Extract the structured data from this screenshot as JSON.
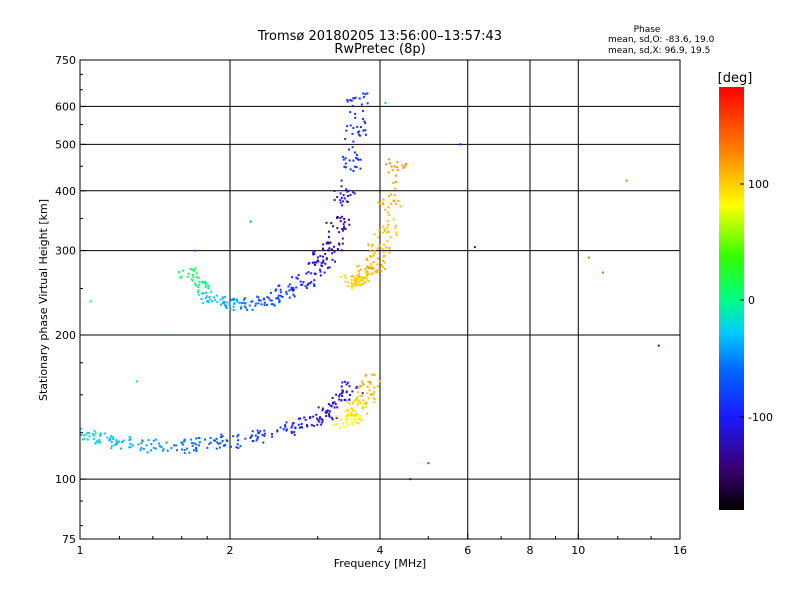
{
  "chart_data": {
    "type": "scatter",
    "title": "Tromsø 20180205 13:56:00–13:57:43",
    "subtitle": "RwPretec (8p)",
    "xlabel": "Frequency [MHz]",
    "ylabel": "Stationary phase Virtual Height [km]",
    "x_scale": "log",
    "y_scale": "log",
    "xlim": [
      1,
      16
    ],
    "ylim": [
      75,
      750
    ],
    "x_ticks": [
      "1",
      "2",
      "4",
      "6",
      "8",
      "10",
      "16"
    ],
    "y_ticks": [
      "75",
      "100",
      "200",
      "300",
      "400",
      "500",
      "600",
      "750"
    ],
    "grid": true,
    "phase_info": {
      "heading": "Phase",
      "line_o": "mean, sd,O: -83.6, 19.0",
      "line_x": "mean, sd,X:  96.9, 19.5"
    },
    "colorbar": {
      "label": "[deg]",
      "ticks": [
        "100",
        "0",
        "-100"
      ],
      "range": [
        -180,
        180
      ]
    },
    "traces": [
      {
        "segment": "F-layer O-trace",
        "x": [
          1.65,
          1.75,
          1.85,
          2.0,
          2.2,
          2.4,
          2.6,
          2.8,
          3.0,
          3.1,
          3.2,
          3.3,
          3.4,
          3.5,
          3.55,
          3.6
        ],
        "y": [
          270,
          250,
          240,
          232,
          233,
          238,
          246,
          258,
          275,
          290,
          310,
          340,
          390,
          460,
          540,
          620
        ],
        "phase": [
          10,
          0,
          -30,
          -40,
          -60,
          -75,
          -85,
          -95,
          -110,
          -120,
          -130,
          -130,
          -110,
          -90,
          -90,
          -90
        ]
      },
      {
        "segment": "F-layer X-trace",
        "x": [
          3.5,
          3.6,
          3.7,
          3.8,
          3.9,
          4.0,
          4.1,
          4.2,
          4.3
        ],
        "y": [
          258,
          258,
          262,
          270,
          280,
          300,
          330,
          380,
          450
        ],
        "phase": [
          90,
          95,
          100,
          105,
          110,
          105,
          100,
          110,
          120
        ]
      },
      {
        "segment": "E/F1-layer O-trace",
        "x": [
          1.05,
          1.1,
          1.2,
          1.4,
          1.6,
          1.8,
          2.0,
          2.3,
          2.6,
          2.9,
          3.1,
          3.3,
          3.5
        ],
        "y": [
          124,
          121,
          119,
          117,
          117,
          118,
          120,
          123,
          127,
          132,
          137,
          145,
          155
        ],
        "phase": [
          -20,
          -25,
          -35,
          -45,
          -55,
          -65,
          -75,
          -85,
          -95,
          -105,
          -115,
          -120,
          -110
        ]
      },
      {
        "segment": "E/F1-layer X-trace",
        "x": [
          3.4,
          3.5,
          3.6,
          3.7,
          3.8
        ],
        "y": [
          132,
          135,
          140,
          148,
          160
        ],
        "phase": [
          80,
          85,
          95,
          100,
          110
        ]
      },
      {
        "segment": "scattered echoes",
        "x": [
          1.05,
          1.3,
          1.5,
          1.7,
          2.2,
          5.8,
          6.2,
          10.5,
          11.2,
          12.5,
          14.5,
          4.6,
          5.0,
          4.1
        ],
        "y": [
          235,
          160,
          200,
          300,
          345,
          500,
          305,
          290,
          270,
          420,
          190,
          100,
          108,
          610
        ],
        "phase": [
          0,
          -20,
          -40,
          -60,
          -50,
          -110,
          -120,
          130,
          140,
          130,
          -130,
          -120,
          160,
          -20
        ]
      }
    ]
  }
}
